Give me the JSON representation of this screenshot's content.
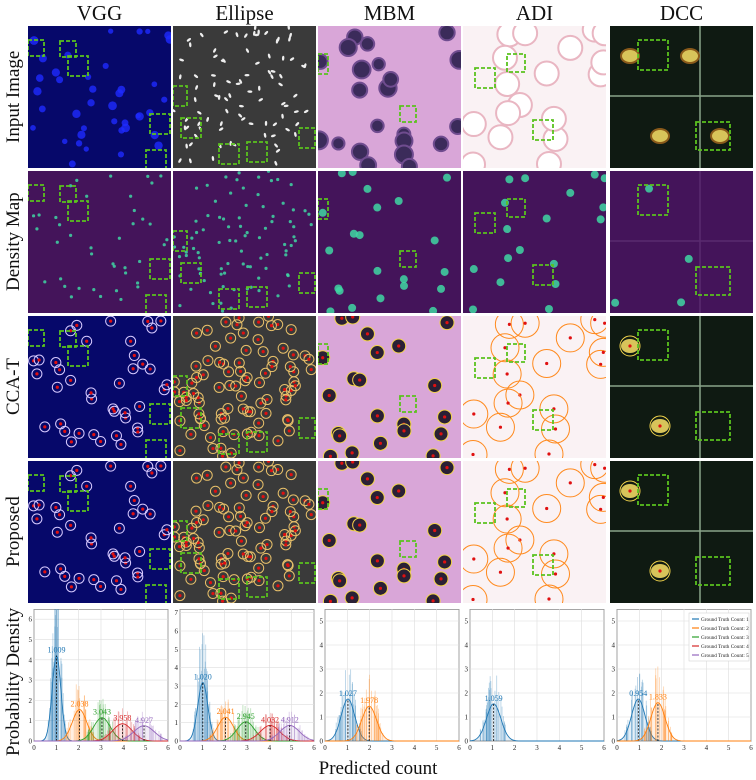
{
  "columns": [
    "VGG",
    "Ellipse",
    "MBM",
    "ADI",
    "DCC"
  ],
  "rows": [
    "Input Image",
    "Density Map",
    "CCA-T",
    "Proposed",
    "Probability Density"
  ],
  "x_axis_label": "Predicted count",
  "colors": {
    "gt1": "#1f77b4",
    "gt2": "#ff7f0e",
    "gt3": "#2ca02c",
    "gt4": "#d62728",
    "gt5": "#9467bd",
    "box": "#5ac21e",
    "density_bg": "#44145a",
    "density_blob": "#3fd6a3",
    "vgg_bg": "#06086a",
    "ellipse_bg": "#3a3a3a",
    "mbm_bg": "#d9a6d8",
    "adi_bg": "#faf2f4",
    "dcc_bg": "#0f1a12"
  },
  "chart_data": [
    {
      "type": "area",
      "panel": "VGG",
      "xlim": [
        0,
        6
      ],
      "ylim": [
        0,
        6.5
      ],
      "xticks": [
        "0",
        "1",
        "2",
        "3",
        "4",
        "5",
        "6"
      ],
      "yticks": [
        "0",
        "1",
        "2",
        "3",
        "4",
        "5",
        "6"
      ],
      "ylabel": "Probability Density",
      "grid": true,
      "series": [
        {
          "mean": 1.009,
          "peak": 4.2,
          "label": "1.009"
        },
        {
          "mean": 2.038,
          "peak": 1.55,
          "label": "2.038"
        },
        {
          "mean": 3.043,
          "peak": 1.15,
          "label": "3.043"
        },
        {
          "mean": 3.958,
          "peak": 0.85,
          "label": "3.958"
        },
        {
          "mean": 4.927,
          "peak": 0.75,
          "label": "4.927"
        }
      ]
    },
    {
      "type": "area",
      "panel": "Ellipse",
      "xlim": [
        0,
        6
      ],
      "ylim": [
        0,
        7.2
      ],
      "xticks": [
        "0",
        "1",
        "2",
        "3",
        "4",
        "5",
        "6"
      ],
      "yticks": [
        "0",
        "1",
        "2",
        "3",
        "4",
        "5",
        "6",
        "7"
      ],
      "grid": true,
      "series": [
        {
          "mean": 1.02,
          "peak": 3.2,
          "label": "1.020"
        },
        {
          "mean": 2.041,
          "peak": 1.3,
          "label": "2.041"
        },
        {
          "mean": 2.945,
          "peak": 1.05,
          "label": "2.945"
        },
        {
          "mean": 4.032,
          "peak": 0.85,
          "label": "4.032"
        },
        {
          "mean": 4.912,
          "peak": 0.85,
          "label": "4.912"
        }
      ]
    },
    {
      "type": "area",
      "panel": "MBM",
      "xlim": [
        0,
        6
      ],
      "ylim": [
        0,
        5.5
      ],
      "xticks": [
        "0",
        "1",
        "2",
        "3",
        "4",
        "5",
        "6"
      ],
      "yticks": [
        "0",
        "1",
        "2",
        "3",
        "4",
        "5"
      ],
      "grid": true,
      "series": [
        {
          "mean": 1.027,
          "peak": 1.75,
          "label": "1.027"
        },
        {
          "mean": 1.978,
          "peak": 1.45,
          "label": "1.978"
        }
      ]
    },
    {
      "type": "area",
      "panel": "ADI",
      "xlim": [
        0,
        6
      ],
      "ylim": [
        0,
        5.5
      ],
      "xticks": [
        "0",
        "1",
        "2",
        "3",
        "4",
        "5",
        "6"
      ],
      "yticks": [
        "0",
        "1",
        "2",
        "3",
        "4",
        "5"
      ],
      "grid": true,
      "series": [
        {
          "mean": 1.059,
          "peak": 1.55,
          "label": "1.059"
        }
      ]
    },
    {
      "type": "area",
      "panel": "DCC",
      "xlim": [
        0,
        6
      ],
      "ylim": [
        0,
        5.5
      ],
      "xticks": [
        "0",
        "1",
        "2",
        "3",
        "4",
        "5",
        "6"
      ],
      "yticks": [
        "0",
        "1",
        "2",
        "3",
        "4",
        "5"
      ],
      "grid": true,
      "legend_position": "top-right",
      "series": [
        {
          "mean": 0.954,
          "peak": 1.75,
          "label": "0.954"
        },
        {
          "mean": 1.833,
          "peak": 1.6,
          "label": "1.833"
        }
      ],
      "legend": [
        "Ground Truth Count: 1",
        "Ground Truth Count: 2",
        "Ground Truth Count: 3",
        "Ground Truth Count: 4",
        "Ground Truth Count: 5"
      ]
    }
  ]
}
